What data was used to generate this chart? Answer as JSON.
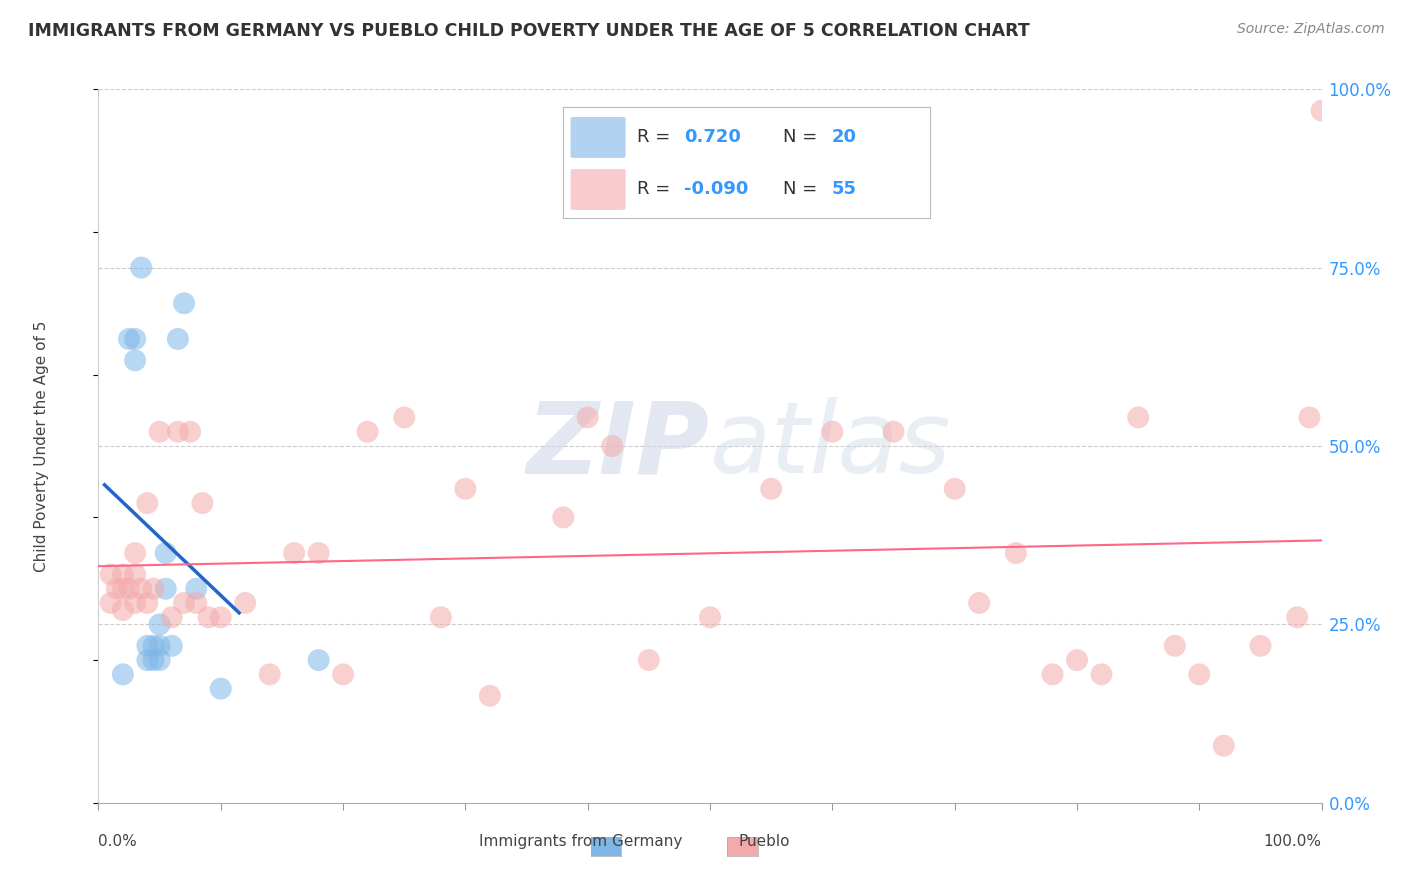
{
  "title": "IMMIGRANTS FROM GERMANY VS PUEBLO CHILD POVERTY UNDER THE AGE OF 5 CORRELATION CHART",
  "source": "Source: ZipAtlas.com",
  "ylabel": "Child Poverty Under the Age of 5",
  "xlim": [
    0.0,
    1.0
  ],
  "ylim": [
    0.0,
    1.0
  ],
  "xtick_positions": [
    0.0,
    1.0
  ],
  "xtick_labels": [
    "0.0%",
    "100.0%"
  ],
  "yticks_right": [
    0.0,
    0.25,
    0.5,
    0.75,
    1.0
  ],
  "ytick_labels": [
    "0.0%",
    "25.0%",
    "50.0%",
    "75.0%",
    "100.0%"
  ],
  "blue_R": 0.72,
  "blue_N": 20,
  "pink_R": -0.09,
  "pink_N": 55,
  "blue_color": "#7EB6E8",
  "pink_color": "#F4AAAA",
  "blue_line_color": "#2266CC",
  "pink_line_color": "#FF6688",
  "watermark_zip": "ZIP",
  "watermark_atlas": "atlas",
  "legend_label_blue": "Immigrants from Germany",
  "legend_label_pink": "Pueblo",
  "blue_scatter_x": [
    0.02,
    0.025,
    0.03,
    0.03,
    0.035,
    0.04,
    0.04,
    0.045,
    0.045,
    0.05,
    0.05,
    0.05,
    0.055,
    0.055,
    0.06,
    0.065,
    0.07,
    0.08,
    0.1,
    0.18
  ],
  "blue_scatter_y": [
    0.18,
    0.65,
    0.62,
    0.65,
    0.75,
    0.2,
    0.22,
    0.2,
    0.22,
    0.2,
    0.22,
    0.25,
    0.3,
    0.35,
    0.22,
    0.65,
    0.7,
    0.3,
    0.16,
    0.2
  ],
  "pink_scatter_x": [
    0.01,
    0.01,
    0.015,
    0.02,
    0.02,
    0.02,
    0.025,
    0.03,
    0.03,
    0.03,
    0.035,
    0.04,
    0.04,
    0.045,
    0.05,
    0.06,
    0.065,
    0.07,
    0.075,
    0.08,
    0.085,
    0.09,
    0.1,
    0.12,
    0.14,
    0.16,
    0.18,
    0.2,
    0.22,
    0.25,
    0.28,
    0.3,
    0.32,
    0.38,
    0.4,
    0.42,
    0.45,
    0.5,
    0.55,
    0.6,
    0.65,
    0.7,
    0.72,
    0.75,
    0.78,
    0.8,
    0.82,
    0.85,
    0.88,
    0.9,
    0.92,
    0.95,
    0.98,
    0.99,
    1.0
  ],
  "pink_scatter_y": [
    0.28,
    0.32,
    0.3,
    0.27,
    0.3,
    0.32,
    0.3,
    0.28,
    0.32,
    0.35,
    0.3,
    0.28,
    0.42,
    0.3,
    0.52,
    0.26,
    0.52,
    0.28,
    0.52,
    0.28,
    0.42,
    0.26,
    0.26,
    0.28,
    0.18,
    0.35,
    0.35,
    0.18,
    0.52,
    0.54,
    0.26,
    0.44,
    0.15,
    0.4,
    0.54,
    0.5,
    0.2,
    0.26,
    0.44,
    0.52,
    0.52,
    0.44,
    0.28,
    0.35,
    0.18,
    0.2,
    0.18,
    0.54,
    0.22,
    0.18,
    0.08,
    0.22,
    0.26,
    0.54,
    0.97
  ],
  "blue_trend_x": [
    0.01,
    0.13
  ],
  "pink_trend_start_x": 0.0,
  "pink_trend_end_x": 1.0,
  "pink_trend_start_y": 0.43,
  "pink_trend_end_y": 0.36
}
